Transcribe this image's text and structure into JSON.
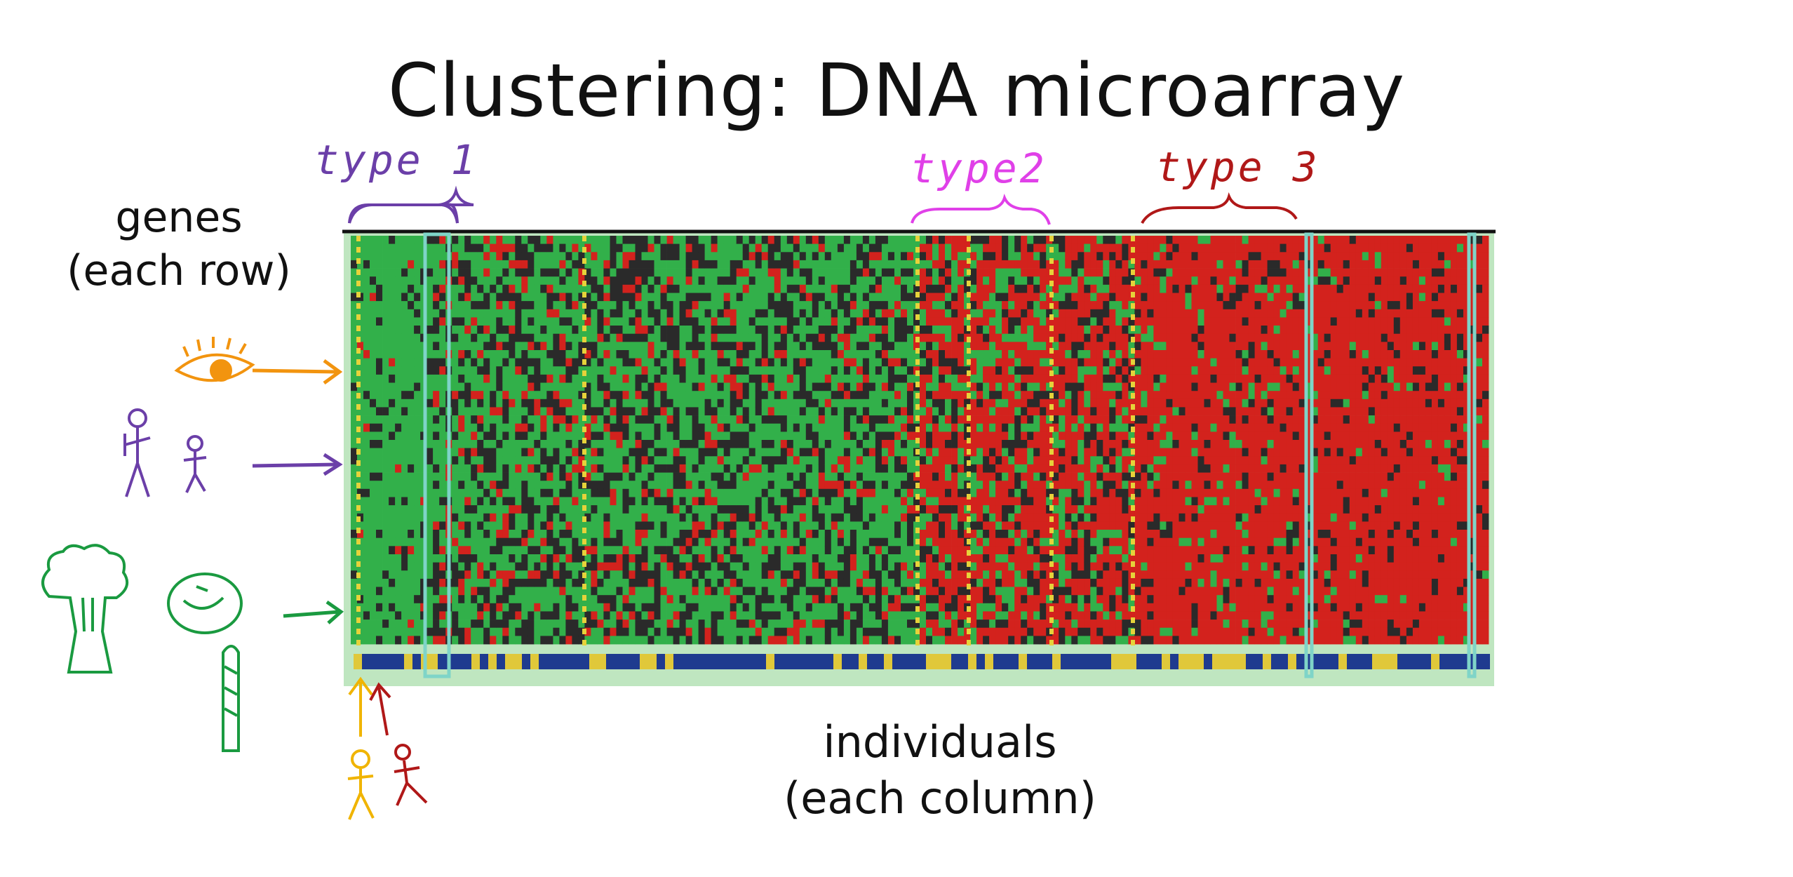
{
  "slide": {
    "title": "Clustering: DNA microarray",
    "rows_label": {
      "line1": "genes",
      "line2": "(each row)"
    },
    "columns_label": {
      "line1": "individuals",
      "line2": "(each column)"
    }
  },
  "annotations": {
    "type1": {
      "text": "type 1",
      "color": "#6b3fa8"
    },
    "type2": {
      "text": "type2",
      "color": "#e040e8"
    },
    "type3": {
      "text": "type 3",
      "color": "#b01818"
    }
  },
  "doodles": {
    "eye": {
      "icon": "eye-icon",
      "color": "#f2940f"
    },
    "people": {
      "icon": "stick-people-icon",
      "color": "#6b3fa8"
    },
    "vegetables": {
      "icon": "vegetables-icon",
      "color": "#1a9a40"
    },
    "person_yellow": {
      "icon": "stick-person-icon",
      "color": "#f0b400"
    },
    "person_red": {
      "icon": "stick-person-icon",
      "color": "#b01818"
    }
  },
  "heatmap": {
    "colors": {
      "high": "#d3221d",
      "low": "#32b04a",
      "neutral": "#2a2a2a",
      "frame": "#bfe6c0",
      "separator": "#7fd4c8",
      "label_bar_a": "#1f3b8f",
      "label_bar_b": "#e0c83a"
    }
  }
}
